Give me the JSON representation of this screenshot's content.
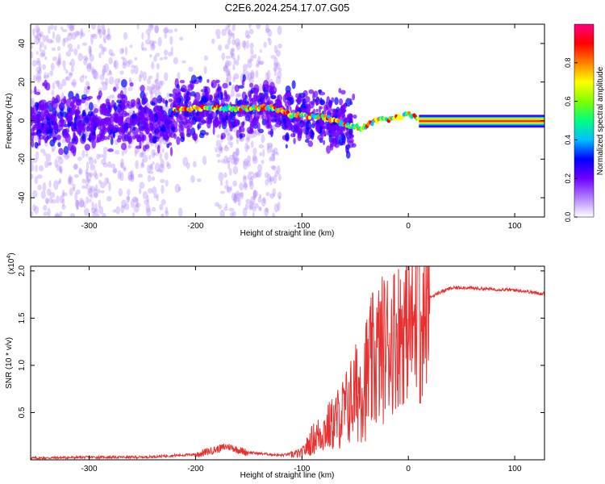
{
  "title": "C2E6.2024.254.17.07.G05",
  "chart_data": [
    {
      "type": "heatmap",
      "title": "C2E6.2024.254.17.07.G05",
      "xlabel": "Height of straight line (km)",
      "ylabel": "Frequency (Hz)",
      "xlim": [
        -355,
        128
      ],
      "ylim": [
        -50,
        50
      ],
      "xticks": [
        -300,
        -200,
        -100,
        0,
        100
      ],
      "yticks": [
        -40,
        -20,
        0,
        20,
        40
      ],
      "colorbar": {
        "label": "Normalized spectral amplitude",
        "range": [
          0,
          1
        ],
        "ticks": [
          0.0,
          0.2,
          0.4,
          0.6,
          0.8
        ],
        "colors": [
          "#ffffff",
          "#b080ff",
          "#7000ff",
          "#0000ff",
          "#00c0ff",
          "#00ff80",
          "#80ff00",
          "#ffff00",
          "#ff8000",
          "#ff0000",
          "#ff0080"
        ]
      },
      "ridge": {
        "description_x": [
          -220,
          -180,
          -160,
          -130,
          -110,
          -80,
          -60,
          -45,
          -30,
          -15,
          0,
          10,
          128
        ],
        "y": [
          6,
          7,
          6,
          7,
          3,
          2,
          -2,
          -4,
          0,
          1,
          3,
          1,
          0
        ]
      },
      "grid": false
    },
    {
      "type": "line",
      "xlabel": "Height of straight line (km)",
      "ylabel": "SNR (10 * v/v)",
      "y_multiplier_label": "(x10",
      "y_multiplier_exp": "4",
      "xlim": [
        -355,
        128
      ],
      "ylim": [
        0,
        2.05
      ],
      "xticks": [
        -300,
        -200,
        -100,
        0,
        100
      ],
      "yticks": [
        0.5,
        1.0,
        1.5,
        2.0
      ],
      "ytick_labels": [
        "0.5",
        "1.0",
        "1.5",
        "2.0"
      ],
      "series": [
        {
          "color": "#e83030",
          "x": [
            -355,
            -300,
            -250,
            -200,
            -180,
            -170,
            -150,
            -120,
            -100,
            -90,
            -80,
            -70,
            -60,
            -50,
            -40,
            -30,
            -20,
            -10,
            0,
            10,
            15,
            20,
            30,
            40,
            50,
            60,
            80,
            100,
            110,
            120,
            128
          ],
          "y": [
            0.02,
            0.03,
            0.03,
            0.06,
            0.12,
            0.15,
            0.08,
            0.05,
            0.08,
            0.25,
            0.35,
            0.45,
            0.6,
            0.8,
            1.0,
            1.25,
            1.4,
            1.5,
            1.6,
            1.55,
            1.65,
            1.72,
            1.78,
            1.82,
            1.83,
            1.82,
            1.81,
            1.8,
            1.79,
            1.77,
            1.76
          ]
        }
      ],
      "grid": false
    }
  ]
}
